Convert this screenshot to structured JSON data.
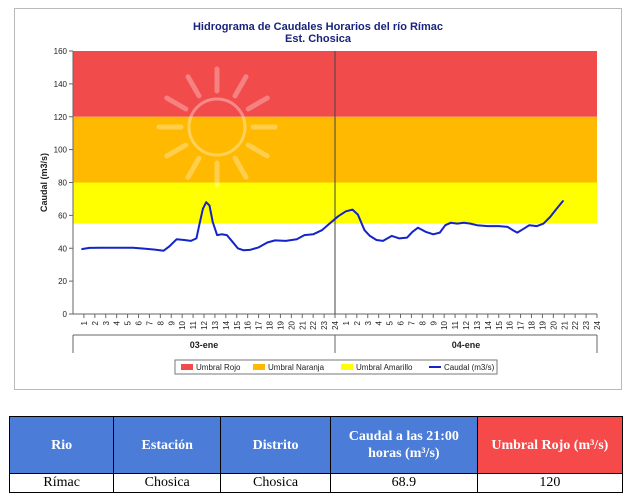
{
  "chart_data": {
    "type": "line",
    "title": "Hidrograma de Caudales Horarios del río Rímac",
    "subtitle": "Est. Chosica",
    "ylabel": "Caudal  (m3/s)",
    "ylim": [
      0,
      160
    ],
    "yticks": [
      "0",
      "20",
      "40",
      "60",
      "80",
      "100",
      "120",
      "140",
      "160"
    ],
    "xtick_labels": [
      "1",
      "2",
      "3",
      "4",
      "5",
      "6",
      "7",
      "8",
      "9",
      "10",
      "11",
      "12",
      "13",
      "14",
      "15",
      "16",
      "17",
      "18",
      "19",
      "20",
      "21",
      "22",
      "23",
      "24",
      "1",
      "2",
      "3",
      "4",
      "5",
      "6",
      "7",
      "8",
      "9",
      "10",
      "11",
      "12",
      "13",
      "14",
      "15",
      "16",
      "17",
      "18",
      "19",
      "20",
      "21",
      "22",
      "23",
      "24"
    ],
    "x_groups": [
      "03-ene",
      "04-ene"
    ],
    "thresholds": [
      {
        "name": "Umbral Rojo",
        "from": 120,
        "to": 160,
        "color": "#f24b4b"
      },
      {
        "name": "Umbral Naranja",
        "from": 80,
        "to": 120,
        "color": "#ffb900"
      },
      {
        "name": "Umbral Amarillo",
        "from": 55,
        "to": 80,
        "color": "#ffff00"
      }
    ],
    "series": [
      {
        "name": "Caudal (m3/s)",
        "color": "#1424c8",
        "points": [
          [
            0.8,
            39.5
          ],
          [
            1.5,
            40.2
          ],
          [
            2.5,
            40.3
          ],
          [
            3.5,
            40.3
          ],
          [
            4.5,
            40.3
          ],
          [
            5.5,
            40.3
          ],
          [
            6.5,
            39.8
          ],
          [
            7.5,
            39.2
          ],
          [
            8.3,
            38.5
          ],
          [
            8.8,
            41
          ],
          [
            9.5,
            45.5
          ],
          [
            10.2,
            45
          ],
          [
            10.8,
            44.5
          ],
          [
            11.3,
            46
          ],
          [
            11.6,
            55
          ],
          [
            11.9,
            64
          ],
          [
            12.2,
            68
          ],
          [
            12.5,
            66
          ],
          [
            12.8,
            56
          ],
          [
            13.2,
            48
          ],
          [
            13.6,
            48.5
          ],
          [
            14.1,
            48
          ],
          [
            14.6,
            44
          ],
          [
            15.1,
            40
          ],
          [
            15.6,
            38.8
          ],
          [
            16.2,
            39
          ],
          [
            17,
            40.5
          ],
          [
            17.8,
            43.5
          ],
          [
            18.5,
            44.8
          ],
          [
            19.5,
            44.5
          ],
          [
            20.5,
            45.5
          ],
          [
            21.2,
            48
          ],
          [
            22,
            48.5
          ],
          [
            22.8,
            51
          ],
          [
            23.5,
            55
          ],
          [
            24.3,
            59.5
          ],
          [
            25,
            62.5
          ],
          [
            25.6,
            63.5
          ],
          [
            26.1,
            60.5
          ],
          [
            26.7,
            51
          ],
          [
            27.2,
            47.5
          ],
          [
            27.8,
            45
          ],
          [
            28.4,
            44.5
          ],
          [
            29.2,
            47.5
          ],
          [
            29.9,
            46
          ],
          [
            30.6,
            46.5
          ],
          [
            31.1,
            50
          ],
          [
            31.6,
            52.5
          ],
          [
            32.3,
            50
          ],
          [
            33,
            48.5
          ],
          [
            33.6,
            49.5
          ],
          [
            34.1,
            54
          ],
          [
            34.6,
            55.5
          ],
          [
            35.2,
            55
          ],
          [
            35.8,
            55.5
          ],
          [
            36.4,
            55
          ],
          [
            37,
            54
          ],
          [
            38,
            53.5
          ],
          [
            39,
            53.5
          ],
          [
            39.8,
            53
          ],
          [
            40.3,
            51
          ],
          [
            40.7,
            49.5
          ],
          [
            41.2,
            51.5
          ],
          [
            41.8,
            54
          ],
          [
            42.5,
            53.5
          ],
          [
            43.1,
            55
          ],
          [
            43.7,
            59
          ],
          [
            44.3,
            64
          ],
          [
            44.9,
            68.9
          ]
        ]
      }
    ],
    "legend": [
      "Umbral Rojo",
      "Umbral Naranja",
      "Umbral Amarillo",
      "Caudal (m3/s)"
    ],
    "legend_position": "bottom"
  },
  "table": {
    "headers": [
      "Rio",
      "Estación",
      "Distrito",
      "Caudal a las 21:00 horas (m³/s)",
      "Umbral Rojo (m³/s)"
    ],
    "row": [
      "Rímac",
      "Chosica",
      "Chosica",
      "68.9",
      "120"
    ]
  }
}
